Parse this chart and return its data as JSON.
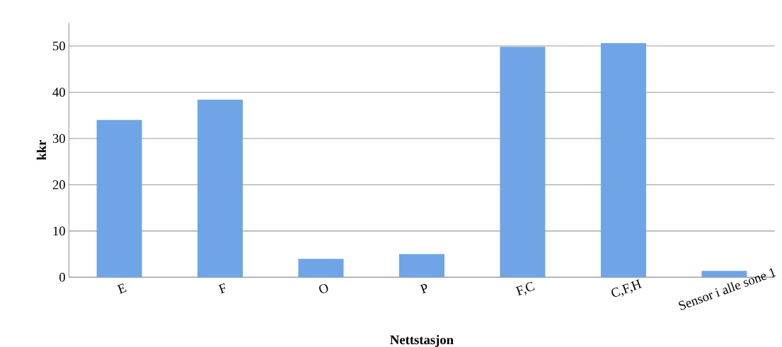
{
  "chart_data": {
    "type": "bar",
    "xlabel": "Nettstasjon",
    "ylabel": "kkr",
    "categories": [
      "E",
      "F",
      "O",
      "P",
      "F,C",
      "C,F,H",
      "Sensor i alle sone 1"
    ],
    "values": [
      34,
      38.4,
      4,
      5,
      49.8,
      50.6,
      1.4
    ],
    "color": "#6fa5e6",
    "ylim": [
      0,
      55
    ],
    "yticks": [
      0,
      10,
      20,
      30,
      40,
      50
    ],
    "grid": "y"
  }
}
